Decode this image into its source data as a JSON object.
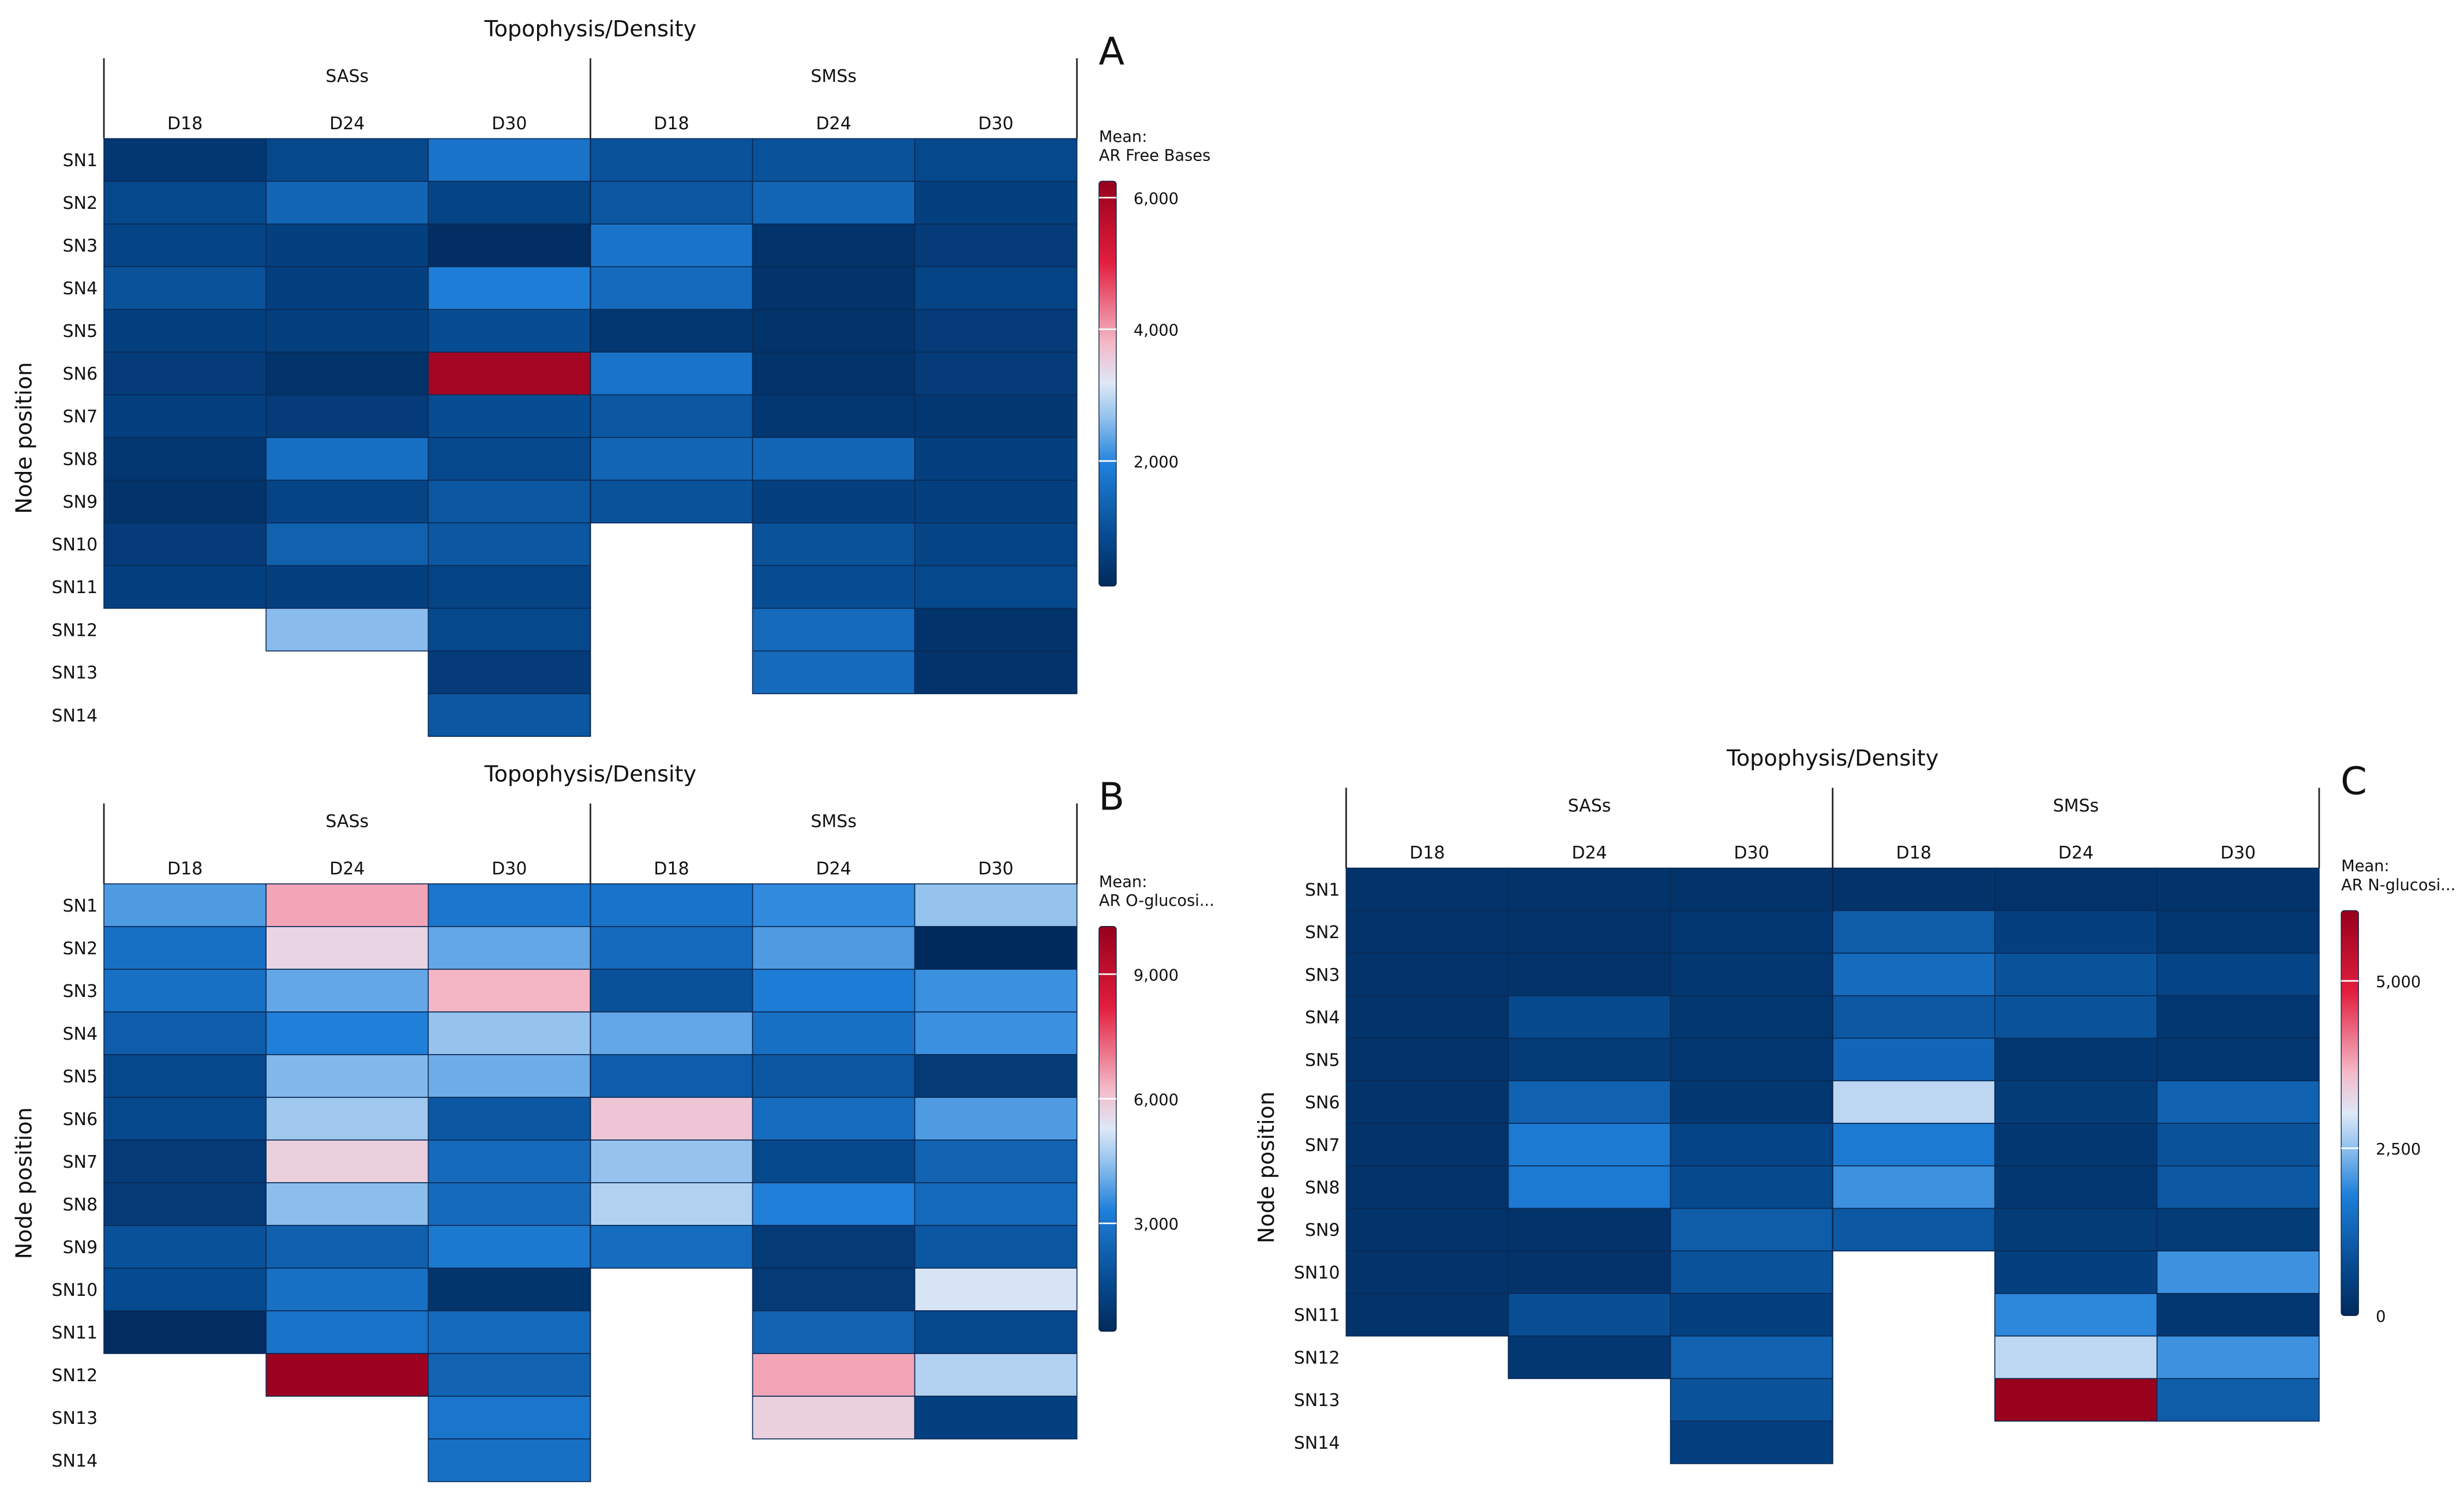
{
  "chart_data": [
    {
      "panel_letter": "A",
      "type": "heatmap",
      "title": "Topophysis/Density",
      "ylabel": "Node position",
      "groups": [
        "SASs",
        "SMSs"
      ],
      "columns": [
        "D18",
        "D24",
        "D30",
        "D18",
        "D24",
        "D30"
      ],
      "rows": [
        "SN1",
        "SN2",
        "SN3",
        "SN4",
        "SN5",
        "SN6",
        "SN7",
        "SN8",
        "SN9",
        "SN10",
        "SN11",
        "SN12",
        "SN13",
        "SN14"
      ],
      "legend_title": "Mean:",
      "legend_subtitle": "AR Free Bases",
      "legend_ticks": [
        {
          "value": 2000,
          "label": "2,000"
        },
        {
          "value": 4000,
          "label": "4,000"
        },
        {
          "value": 6000,
          "label": "6,000"
        }
      ],
      "legend_range": [
        100,
        6250
      ],
      "values": [
        [
          400,
          800,
          1700,
          1000,
          1000,
          800
        ],
        [
          800,
          1400,
          700,
          1100,
          1400,
          600
        ],
        [
          700,
          600,
          200,
          1700,
          300,
          500
        ],
        [
          1000,
          600,
          1900,
          1500,
          300,
          700
        ],
        [
          600,
          600,
          900,
          400,
          300,
          500
        ],
        [
          500,
          300,
          6000,
          1700,
          300,
          500
        ],
        [
          600,
          500,
          900,
          1100,
          400,
          400
        ],
        [
          400,
          1600,
          800,
          1400,
          1400,
          600
        ],
        [
          300,
          700,
          1100,
          1000,
          600,
          600
        ],
        [
          500,
          1300,
          1100,
          null,
          1000,
          700
        ],
        [
          600,
          600,
          700,
          null,
          900,
          800
        ],
        [
          null,
          2600,
          800,
          null,
          1500,
          300
        ],
        [
          null,
          null,
          500,
          null,
          1500,
          300
        ],
        [
          null,
          null,
          1100,
          null,
          null,
          null
        ]
      ]
    },
    {
      "panel_letter": "B",
      "type": "heatmap",
      "title": "Topophysis/Density",
      "ylabel": "Node position",
      "groups": [
        "SASs",
        "SMSs"
      ],
      "columns": [
        "D18",
        "D24",
        "D30",
        "D18",
        "D24",
        "D30"
      ],
      "rows": [
        "SN1",
        "SN2",
        "SN3",
        "SN4",
        "SN5",
        "SN6",
        "SN7",
        "SN8",
        "SN9",
        "SN10",
        "SN11",
        "SN12",
        "SN13",
        "SN14"
      ],
      "legend_title": "Mean:",
      "legend_subtitle": "AR O-glucosi...",
      "legend_ticks": [
        {
          "value": 3000,
          "label": "3,000"
        },
        {
          "value": 6000,
          "label": "6,000"
        },
        {
          "value": 9000,
          "label": "9,000"
        }
      ],
      "legend_range": [
        400,
        10150
      ],
      "values": [
        [
          3800,
          6500,
          3000,
          2900,
          3500,
          4500
        ],
        [
          2800,
          5700,
          4000,
          2600,
          3800,
          400
        ],
        [
          2800,
          4000,
          6300,
          1800,
          3200,
          3600
        ],
        [
          2200,
          3300,
          4500,
          4000,
          2800,
          3600
        ],
        [
          1500,
          4300,
          4100,
          2200,
          2000,
          1000
        ],
        [
          1500,
          4600,
          2000,
          6000,
          2700,
          3800
        ],
        [
          1000,
          5800,
          2600,
          4500,
          1500,
          2400
        ],
        [
          1000,
          4400,
          2600,
          4800,
          3300,
          2600
        ],
        [
          1800,
          2300,
          3100,
          2700,
          1000,
          2000
        ],
        [
          1600,
          2800,
          800,
          null,
          1000,
          5200
        ],
        [
          500,
          2900,
          2600,
          null,
          2400,
          1500
        ],
        [
          null,
          10000,
          2400,
          null,
          6500,
          4800
        ],
        [
          null,
          null,
          3000,
          null,
          5800,
          1200
        ],
        [
          null,
          null,
          2800,
          null,
          null,
          null
        ]
      ]
    },
    {
      "panel_letter": "C",
      "type": "heatmap",
      "title": "Topophysis/Density",
      "ylabel": "Node position",
      "groups": [
        "SASs",
        "SMSs"
      ],
      "columns": [
        "D18",
        "D24",
        "D30",
        "D18",
        "D24",
        "D30"
      ],
      "rows": [
        "SN1",
        "SN2",
        "SN3",
        "SN4",
        "SN5",
        "SN6",
        "SN7",
        "SN8",
        "SN9",
        "SN10",
        "SN11",
        "SN12",
        "SN13",
        "SN14"
      ],
      "legend_title": "Mean:",
      "legend_subtitle": "AR N-glucosi...",
      "legend_ticks": [
        {
          "value": 0,
          "label": "0"
        },
        {
          "value": 2500,
          "label": "2,500"
        },
        {
          "value": 5000,
          "label": "5,000"
        }
      ],
      "legend_range": [
        0,
        6050
      ],
      "values": [
        [
          200,
          200,
          200,
          200,
          200,
          200
        ],
        [
          200,
          200,
          300,
          1100,
          500,
          300
        ],
        [
          200,
          200,
          300,
          1400,
          900,
          600
        ],
        [
          200,
          700,
          300,
          1000,
          900,
          300
        ],
        [
          200,
          400,
          300,
          1300,
          300,
          300
        ],
        [
          200,
          1200,
          300,
          2800,
          400,
          1200
        ],
        [
          200,
          1700,
          600,
          1700,
          300,
          900
        ],
        [
          200,
          1700,
          700,
          2000,
          300,
          1000
        ],
        [
          200,
          200,
          1100,
          1000,
          400,
          400
        ],
        [
          200,
          200,
          900,
          null,
          500,
          2000
        ],
        [
          200,
          800,
          500,
          null,
          1900,
          300
        ],
        [
          null,
          300,
          1200,
          null,
          2800,
          2000
        ],
        [
          null,
          null,
          900,
          null,
          6000,
          1100
        ],
        [
          null,
          null,
          500,
          null,
          null,
          null
        ]
      ]
    }
  ]
}
